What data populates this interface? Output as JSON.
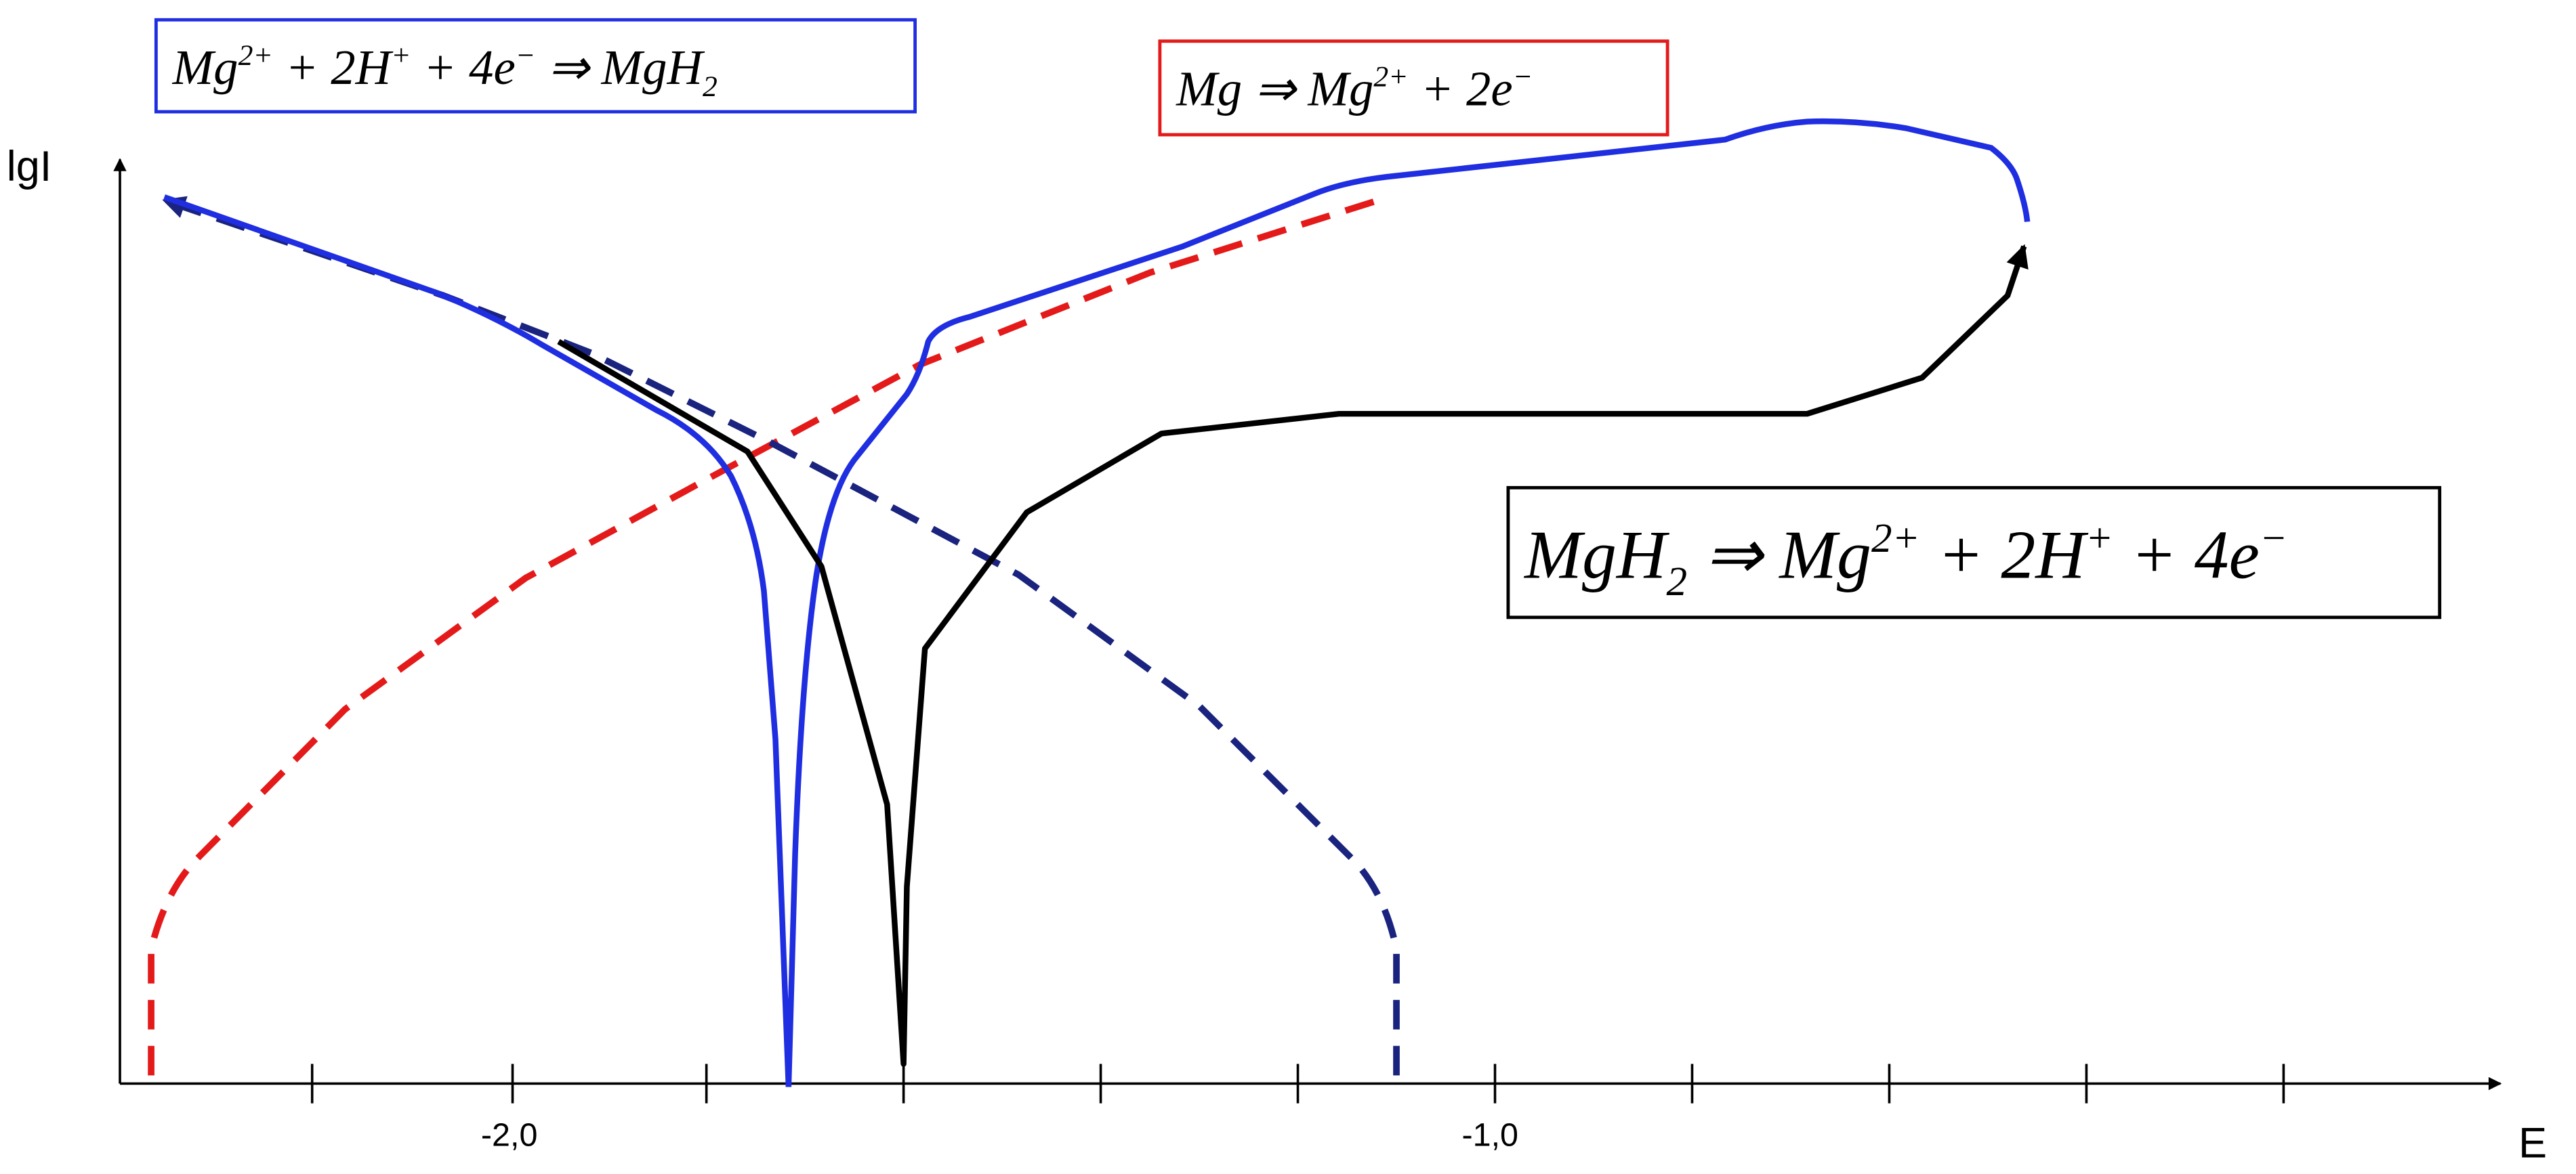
{
  "axes": {
    "y_label": "lgI",
    "x_label": "E",
    "x_tick_labels": [
      "-2,0",
      "-1,0"
    ]
  },
  "equations": [
    [
      {
        "text": "Mg"
      },
      {
        "sup": "2+"
      },
      {
        "text": " + 2H"
      },
      {
        "sup": "+"
      },
      {
        "text": " + 4e"
      },
      {
        "sup": "−"
      },
      {
        "text": " ⇒ MgH"
      },
      {
        "sub": "2"
      }
    ],
    [
      {
        "text": "Mg ⇒ Mg"
      },
      {
        "sup": "2+"
      },
      {
        "text": " + 2e"
      },
      {
        "sup": "−"
      }
    ],
    [
      {
        "text": "MgH"
      },
      {
        "sub": "2"
      },
      {
        "text": " ⇒ Mg"
      },
      {
        "sup": "2+"
      },
      {
        "text": " + 2H"
      },
      {
        "sup": "+"
      },
      {
        "text": " + 4e"
      },
      {
        "sup": "−"
      }
    ]
  ]
}
